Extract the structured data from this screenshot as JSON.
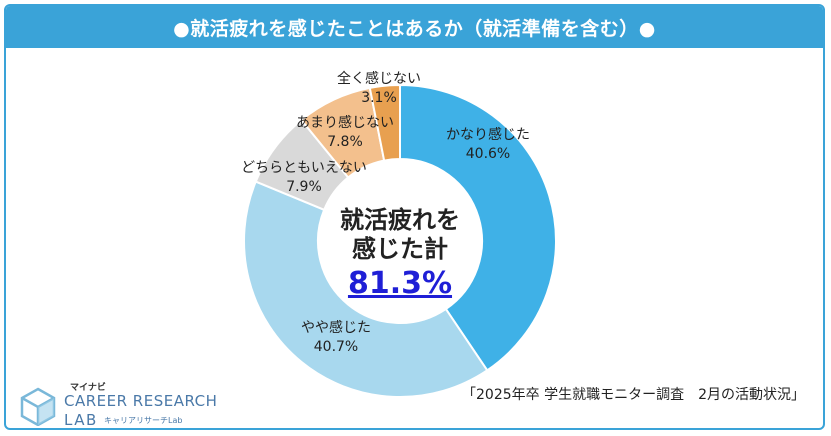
{
  "title": "●就活疲れを感じたことはあるか（就活準備を含む）●",
  "center": {
    "line1": "就活疲れを",
    "line2": "感じた計",
    "total": "81.3%"
  },
  "source": "「2025年卒 学生就職モニター調査　2月の活動状況」",
  "logo": {
    "mynavi": "マイナビ",
    "career": "CAREER RESEARCH",
    "lab": "LAB",
    "sub": "キャリアリサーチLab"
  },
  "colors": {
    "title_bg": "#3aa3d8",
    "total_text": "#1f1fd6"
  },
  "chart_data": {
    "type": "pie",
    "variant": "donut",
    "start": "top, clockwise",
    "slices": [
      {
        "label": "かなり感じた",
        "value": 40.6,
        "display": "40.6%",
        "color": "#3fb1e7"
      },
      {
        "label": "やや感じた",
        "value": 40.7,
        "display": "40.7%",
        "color": "#a8d8ee"
      },
      {
        "label": "どちらともいえない",
        "value": 7.9,
        "display": "7.9%",
        "color": "#d9d9d9"
      },
      {
        "label": "あまり感じない",
        "value": 7.8,
        "display": "7.8%",
        "color": "#f3c08d"
      },
      {
        "label": "全く感じない",
        "value": 3.1,
        "display": "3.1%",
        "color": "#e8a050"
      }
    ]
  }
}
